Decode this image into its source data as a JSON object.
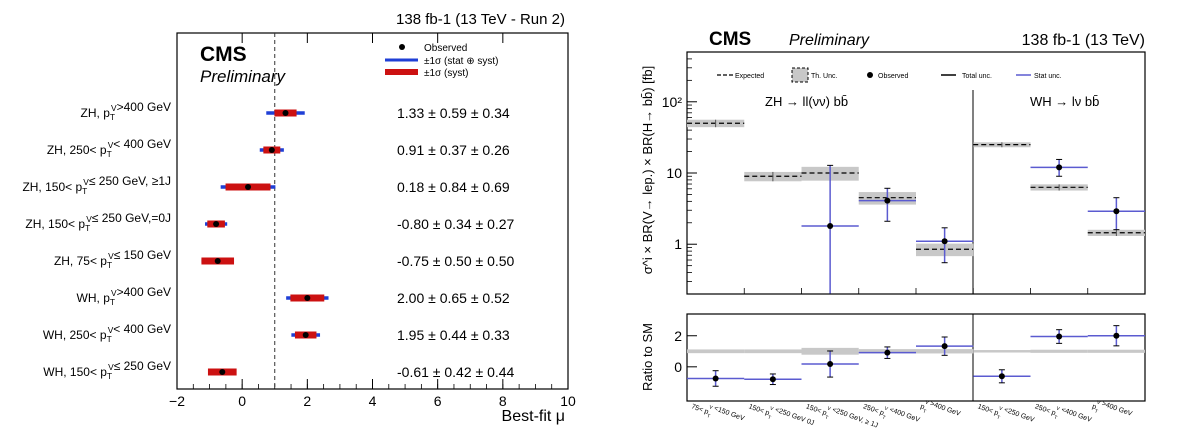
{
  "chart_data": [
    {
      "type": "scatter",
      "lumi_label": "138 fb-1 (13 TeV - Run 2)",
      "experiment": "CMS",
      "status": "Preliminary",
      "xlabel": "Best-fit μ",
      "xlim": [
        -2,
        10
      ],
      "xticks": [
        -2,
        0,
        2,
        4,
        6,
        8,
        10
      ],
      "sm_reference": 1,
      "legend": {
        "observed": "Observed",
        "total": "±1σ (stat ⊕ syst)",
        "syst": "±1σ (syst)"
      },
      "colors": {
        "total": "#1f3fd6",
        "syst": "#cc1111",
        "marker": "#000000"
      },
      "rows": [
        {
          "label": "ZH, p_T^V>400 GeV",
          "mu": 1.33,
          "tot": 0.59,
          "syst": 0.34,
          "text": "1.33 ± 0.59 ± 0.34"
        },
        {
          "label": "ZH, 250< p_T^V< 400 GeV",
          "mu": 0.91,
          "tot": 0.37,
          "syst": 0.26,
          "text": "0.91 ± 0.37 ± 0.26"
        },
        {
          "label": "ZH, 150< p_T^V≤ 250 GeV, ≥1J",
          "mu": 0.18,
          "tot": 0.84,
          "syst": 0.69,
          "text": "0.18 ± 0.84 ± 0.69"
        },
        {
          "label": "ZH, 150< p_T^V≤ 250 GeV,=0J",
          "mu": -0.8,
          "tot": 0.34,
          "syst": 0.27,
          "text": "-0.80 ± 0.34 ± 0.27"
        },
        {
          "label": "ZH, 75< p_T^V≤ 150 GeV",
          "mu": -0.75,
          "tot": 0.5,
          "syst": 0.5,
          "text": "-0.75 ± 0.50 ± 0.50"
        },
        {
          "label": "WH, p_T^V>400 GeV",
          "mu": 2.0,
          "tot": 0.65,
          "syst": 0.52,
          "text": "2.00 ± 0.65 ± 0.52"
        },
        {
          "label": "WH, 250< p_T^V< 400 GeV",
          "mu": 1.95,
          "tot": 0.44,
          "syst": 0.33,
          "text": "1.95 ± 0.44 ± 0.33"
        },
        {
          "label": "WH, 150< p_T^V≤ 250 GeV",
          "mu": -0.61,
          "tot": 0.42,
          "syst": 0.44,
          "text": "-0.61 ± 0.42 ± 0.44"
        }
      ]
    },
    {
      "type": "line",
      "experiment": "CMS",
      "status": "Preliminary",
      "lumi_label": "138 fb-1 (13 TeV)",
      "ylabel": "σ^i × BR(V→ lep.) × BR(H→ bb̄) [fb]",
      "ylog": true,
      "ylim": [
        0.2,
        500
      ],
      "yticks": [
        1,
        10,
        100
      ],
      "ytick_labels": [
        "1",
        "10",
        "10²"
      ],
      "region_labels": [
        "ZH → ll(νν) bb̄",
        "WH → lν bb̄"
      ],
      "legend": [
        "Expected",
        "Th. Unc.",
        "Observed",
        "Total unc.",
        "Stat unc."
      ],
      "colors": {
        "stat": "#5b5bd0",
        "band": "#c8c8c8",
        "marker": "#000000"
      },
      "bins": [
        "75< p_T^V <150 GeV",
        "150< p_T^V <250 GeV 0J",
        "150< p_T^V <250 GeV, ≥ 1J",
        "250< p_T^V <400 GeV",
        "p_T^V >400 GeV",
        "150< p_T^V <250 GeV",
        "250< p_T^V <400 GeV",
        "p_T^V >400 GeV"
      ],
      "expected": [
        50,
        9,
        10,
        4.5,
        0.85,
        25,
        6.3,
        1.45
      ],
      "th_unc_frac": [
        0.12,
        0.15,
        0.22,
        0.2,
        0.2,
        0.08,
        0.1,
        0.1
      ],
      "observed": [
        null,
        null,
        1.8,
        4.1,
        1.1,
        null,
        12,
        2.9
      ],
      "obs_err_low": [
        null,
        null,
        1.6,
        2.0,
        0.55,
        null,
        3.0,
        1.3
      ],
      "obs_err_high": [
        null,
        null,
        11,
        2.0,
        0.6,
        null,
        3.5,
        1.6
      ],
      "ratio": {
        "ylabel": "Ratio to SM",
        "ylim": [
          -2.2,
          3.4
        ],
        "yticks": [
          0,
          2
        ],
        "values": [
          -0.75,
          -0.8,
          0.18,
          0.91,
          1.33,
          -0.61,
          1.95,
          2.0
        ],
        "err": [
          0.5,
          0.34,
          0.84,
          0.37,
          0.59,
          0.42,
          0.44,
          0.65
        ],
        "band_halfwidth": [
          0.12,
          0.12,
          0.22,
          0.14,
          0.14,
          0.08,
          0.1,
          0.1
        ]
      }
    }
  ]
}
